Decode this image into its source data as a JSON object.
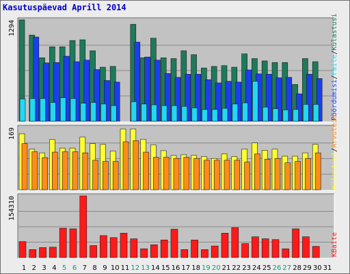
{
  "title": "Kasutuspäevad Aprill 2014",
  "colors": {
    "panel_bg": "#c2c2c2",
    "visits": "#1e7a5a",
    "pages": "#1a3ff0",
    "files": "#22d8f2",
    "hits": "#ffff33",
    "sites": "#ff8c1a",
    "kbytes": "#ff1a1a",
    "weekend_label": "#00a070",
    "weekday_label": "#000000",
    "title": "#0000cc"
  },
  "chart_data": [
    {
      "type": "bar",
      "categories": [
        "1",
        "2",
        "3",
        "4",
        "5",
        "6",
        "7",
        "8",
        "9",
        "10",
        "11",
        "12",
        "13",
        "14",
        "15",
        "16",
        "17",
        "18",
        "19",
        "20",
        "21",
        "22",
        "23",
        "24",
        "25",
        "26",
        "27",
        "28",
        "29",
        "30",
        "31"
      ],
      "weekend_days": [
        "5",
        "6",
        "12",
        "13",
        "19",
        "20",
        "26",
        "27"
      ],
      "ymax_label": "1294",
      "ylim": [
        0,
        1294
      ],
      "legend": [
        {
          "label": "Külastusi",
          "color": "#1e7a5a"
        },
        {
          "label": "Faile",
          "color": "#22d8f2"
        },
        {
          "label": "Pöördumisi",
          "color": "#1a3ff0"
        }
      ],
      "series": [
        {
          "name": "Külastusi",
          "color": "#1e7a5a",
          "values": [
            1294,
            1100,
            810,
            950,
            950,
            1030,
            1040,
            900,
            690,
            700,
            null,
            1237,
            810,
            1060,
            810,
            800,
            900,
            850,
            680,
            700,
            710,
            690,
            860,
            800,
            770,
            750,
            750,
            470,
            800,
            760,
            null
          ]
        },
        {
          "name": "Pöördumisi",
          "color": "#1a3ff0",
          "values": [
            null,
            1075,
            745,
            750,
            830,
            760,
            780,
            660,
            520,
            500,
            null,
            1010,
            820,
            780,
            610,
            560,
            600,
            600,
            530,
            490,
            510,
            500,
            655,
            605,
            600,
            555,
            560,
            350,
            600,
            545,
            null
          ]
        },
        {
          "name": "Faile",
          "color": "#22d8f2",
          "values": [
            285,
            290,
            290,
            240,
            300,
            290,
            230,
            240,
            220,
            200,
            null,
            250,
            220,
            210,
            200,
            200,
            190,
            170,
            150,
            150,
            165,
            220,
            235,
            510,
            180,
            160,
            145,
            150,
            215,
            215,
            null
          ]
        }
      ]
    },
    {
      "type": "bar",
      "categories": [
        "1",
        "2",
        "3",
        "4",
        "5",
        "6",
        "7",
        "8",
        "9",
        "10",
        "11",
        "12",
        "13",
        "14",
        "15",
        "16",
        "17",
        "18",
        "19",
        "20",
        "21",
        "22",
        "23",
        "24",
        "25",
        "26",
        "27",
        "28",
        "29",
        "30",
        "31"
      ],
      "ymax_label": "169",
      "ylim": [
        0,
        169
      ],
      "legend": [
        {
          "label": "Arvuteid",
          "color": "#ff8c1a"
        },
        {
          "label": "Külastusi",
          "color": "#ffff33"
        }
      ],
      "series": [
        {
          "name": "Külastusi",
          "color": "#ffff33",
          "values": [
            152,
            110,
            100,
            136,
            113,
            113,
            143,
            125,
            123,
            105,
            165,
            165,
            137,
            122,
            106,
            93,
            95,
            93,
            90,
            85,
            97,
            90,
            110,
            127,
            107,
            110,
            91,
            91,
            100,
            123,
            null
          ]
        },
        {
          "name": "Arvuteid",
          "color": "#ff8c1a",
          "values": [
            125,
            103,
            87,
            102,
            103,
            103,
            100,
            80,
            77,
            77,
            130,
            133,
            102,
            88,
            88,
            85,
            88,
            85,
            80,
            80,
            80,
            80,
            75,
            97,
            83,
            85,
            73,
            77,
            85,
            100,
            null
          ]
        }
      ]
    },
    {
      "type": "bar",
      "categories": [
        "1",
        "2",
        "3",
        "4",
        "5",
        "6",
        "7",
        "8",
        "9",
        "10",
        "11",
        "12",
        "13",
        "14",
        "15",
        "16",
        "17",
        "18",
        "19",
        "20",
        "21",
        "22",
        "23",
        "24",
        "25",
        "26",
        "27",
        "28",
        "29",
        "30",
        "31"
      ],
      "ymax_label": "154310",
      "ylim": [
        0,
        154310
      ],
      "legend": [
        {
          "label": "KBaite",
          "color": "#ff1a1a"
        }
      ],
      "series": [
        {
          "name": "KBaite",
          "color": "#ff1a1a",
          "values": [
            40000,
            20000,
            25000,
            26000,
            73500,
            72000,
            154310,
            30000,
            55000,
            50000,
            61000,
            47000,
            22000,
            32000,
            44000,
            71000,
            20000,
            44000,
            20000,
            29000,
            61000,
            75000,
            35000,
            52000,
            47000,
            45000,
            22000,
            72000,
            52000,
            28000,
            null
          ]
        }
      ]
    }
  ]
}
